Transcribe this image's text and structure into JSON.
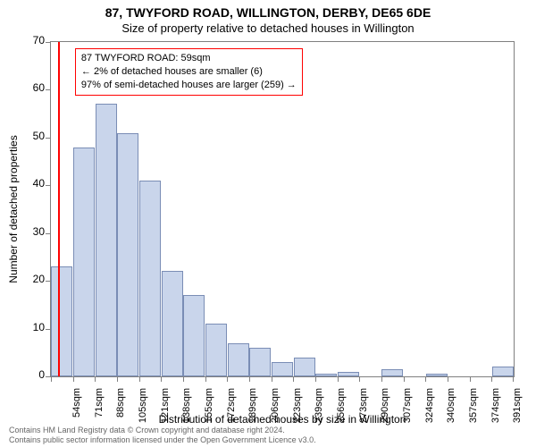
{
  "titles": {
    "line1": "87, TWYFORD ROAD, WILLINGTON, DERBY, DE65 6DE",
    "line2": "Size of property relative to detached houses in Willington"
  },
  "axes": {
    "ylabel": "Number of detached properties",
    "xlabel": "Distribution of detached houses by size in Willington",
    "ylim": [
      0,
      70
    ],
    "ytick_step": 10,
    "yticks": [
      0,
      10,
      20,
      30,
      40,
      50,
      60,
      70
    ]
  },
  "chart": {
    "type": "histogram",
    "bar_fill": "#c9d5eb",
    "bar_border": "#7a8db5",
    "background": "#ffffff",
    "border_color": "#808080",
    "xticks": [
      "54sqm",
      "71sqm",
      "88sqm",
      "105sqm",
      "121sqm",
      "138sqm",
      "155sqm",
      "172sqm",
      "189sqm",
      "206sqm",
      "223sqm",
      "239sqm",
      "256sqm",
      "273sqm",
      "290sqm",
      "307sqm",
      "324sqm",
      "340sqm",
      "357sqm",
      "374sqm",
      "391sqm"
    ],
    "values": [
      23,
      48,
      57,
      51,
      41,
      22,
      17,
      11,
      7,
      6,
      3,
      4,
      0.5,
      1,
      0,
      1.5,
      0,
      0.5,
      0,
      0,
      2
    ]
  },
  "highlight": {
    "line_color": "#ff0000",
    "box_border": "#ff0000",
    "x_index": 0.32,
    "lines": [
      "87 TWYFORD ROAD: 59sqm",
      "← 2% of detached houses are smaller (6)",
      "97% of semi-detached houses are larger (259) →"
    ]
  },
  "footer": {
    "line1": "Contains HM Land Registry data © Crown copyright and database right 2024.",
    "line2": "Contains public sector information licensed under the Open Government Licence v3.0."
  }
}
